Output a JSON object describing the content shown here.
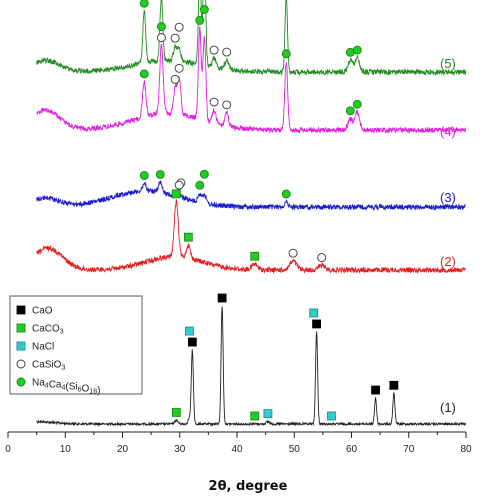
{
  "chart_data": {
    "type": "line",
    "xlabel": "2θ, degree",
    "ylabel": "",
    "xlim": [
      0,
      80
    ],
    "xticks": [
      0,
      10,
      20,
      30,
      40,
      50,
      60,
      70,
      80
    ],
    "y_axis_shown": false,
    "grid": false,
    "legend_placement": "lower-left",
    "marker_types": [
      {
        "key": "CaO",
        "label": "CaO",
        "shape": "square",
        "fill": "#000000",
        "stroke": "#000000"
      },
      {
        "key": "CaCO3",
        "label": "CaCO3",
        "shape": "square",
        "fill": "#22cc22",
        "stroke": "#118811"
      },
      {
        "key": "NaCl",
        "label": "NaCl",
        "shape": "square",
        "fill": "#33cccc",
        "stroke": "#118888"
      },
      {
        "key": "CaSiO3",
        "label": "CaSiO3",
        "shape": "circle",
        "fill": "#ffffff",
        "stroke": "#333333"
      },
      {
        "key": "NaCaSi",
        "label": "Na4Ca4(Si6O18)",
        "shape": "circle",
        "fill": "#22cc22",
        "stroke": "#118811"
      }
    ],
    "series": [
      {
        "name": "(1)",
        "color": "#222222",
        "peaks": [
          {
            "x": 32.2,
            "h": 0.62,
            "w": 0.18
          },
          {
            "x": 37.4,
            "h": 1.0,
            "w": 0.18
          },
          {
            "x": 53.9,
            "h": 0.78,
            "w": 0.18
          },
          {
            "x": 64.2,
            "h": 0.22,
            "w": 0.18
          },
          {
            "x": 67.4,
            "h": 0.26,
            "w": 0.18
          },
          {
            "x": 29.4,
            "h": 0.03,
            "w": 0.3
          },
          {
            "x": 31.7,
            "h": 0.05,
            "w": 0.25
          },
          {
            "x": 45.4,
            "h": 0.02,
            "w": 0.3
          }
        ],
        "humps": [
          {
            "x": 5,
            "h": 0.02,
            "w": 3
          }
        ],
        "markers": [
          {
            "type": "CaO",
            "x": 32.2
          },
          {
            "type": "CaO",
            "x": 37.4
          },
          {
            "type": "CaO",
            "x": 53.9
          },
          {
            "type": "CaO",
            "x": 64.2
          },
          {
            "type": "CaO",
            "x": 67.4
          },
          {
            "type": "CaCO3",
            "x": 29.4
          },
          {
            "type": "CaCO3",
            "x": 43.1
          },
          {
            "type": "NaCl",
            "x": 31.7
          },
          {
            "type": "NaCl",
            "x": 45.4
          },
          {
            "type": "NaCl",
            "x": 53.4
          },
          {
            "type": "NaCl",
            "x": 56.5
          }
        ]
      },
      {
        "name": "(2)",
        "color": "#e02020",
        "peaks": [
          {
            "x": 29.4,
            "h": 0.5,
            "w": 0.35
          },
          {
            "x": 31.5,
            "h": 0.12,
            "w": 0.35
          },
          {
            "x": 43.1,
            "h": 0.05,
            "w": 0.5
          },
          {
            "x": 49.8,
            "h": 0.08,
            "w": 0.6
          },
          {
            "x": 54.8,
            "h": 0.04,
            "w": 0.6
          }
        ],
        "humps": [
          {
            "x": 7,
            "h": 0.2,
            "w": 2.5
          },
          {
            "x": 29,
            "h": 0.12,
            "w": 5
          }
        ],
        "markers": [
          {
            "type": "CaCO3",
            "x": 29.4
          },
          {
            "type": "CaSiO3",
            "x": 30.2
          },
          {
            "type": "CaCO3",
            "x": 31.5
          },
          {
            "type": "CaCO3",
            "x": 43.1
          },
          {
            "type": "CaSiO3",
            "x": 49.8
          },
          {
            "type": "CaSiO3",
            "x": 54.8
          }
        ]
      },
      {
        "name": "(3)",
        "color": "#1a1acc",
        "peaks": [
          {
            "x": 23.8,
            "h": 0.15,
            "w": 0.3
          },
          {
            "x": 26.6,
            "h": 0.2,
            "w": 0.3
          },
          {
            "x": 29.9,
            "h": 0.08,
            "w": 0.3
          },
          {
            "x": 33.5,
            "h": 0.18,
            "w": 0.3
          },
          {
            "x": 34.3,
            "h": 0.18,
            "w": 0.3
          },
          {
            "x": 48.6,
            "h": 0.1,
            "w": 0.3
          }
        ],
        "humps": [
          {
            "x": 6.5,
            "h": 0.18,
            "w": 2.5
          },
          {
            "x": 24,
            "h": 0.32,
            "w": 6
          }
        ],
        "markers": [
          {
            "type": "NaCaSi",
            "x": 23.8
          },
          {
            "type": "NaCaSi",
            "x": 26.6
          },
          {
            "type": "CaSiO3",
            "x": 29.9
          },
          {
            "type": "NaCaSi",
            "x": 33.5
          },
          {
            "type": "NaCaSi",
            "x": 34.3
          },
          {
            "type": "NaCaSi",
            "x": 48.6
          }
        ]
      },
      {
        "name": "(4)",
        "color": "#e020e0",
        "peaks": [
          {
            "x": 23.8,
            "h": 0.32,
            "w": 0.3
          },
          {
            "x": 26.8,
            "h": 0.62,
            "w": 0.3
          },
          {
            "x": 29.2,
            "h": 0.22,
            "w": 0.3
          },
          {
            "x": 29.9,
            "h": 0.32,
            "w": 0.3
          },
          {
            "x": 33.5,
            "h": 0.82,
            "w": 0.25
          },
          {
            "x": 34.3,
            "h": 0.76,
            "w": 0.25
          },
          {
            "x": 36.0,
            "h": 0.12,
            "w": 0.3
          },
          {
            "x": 38.2,
            "h": 0.12,
            "w": 0.3
          },
          {
            "x": 48.6,
            "h": 0.62,
            "w": 0.25
          },
          {
            "x": 59.8,
            "h": 0.1,
            "w": 0.4
          },
          {
            "x": 61.0,
            "h": 0.16,
            "w": 0.4
          }
        ],
        "humps": [
          {
            "x": 6.5,
            "h": 0.18,
            "w": 2.5
          },
          {
            "x": 28,
            "h": 0.15,
            "w": 6
          }
        ],
        "markers": [
          {
            "type": "NaCaSi",
            "x": 23.8
          },
          {
            "type": "CaSiO3",
            "x": 26.8
          },
          {
            "type": "NaCaSi",
            "x": 26.8
          },
          {
            "type": "CaSiO3",
            "x": 29.2
          },
          {
            "type": "CaSiO3",
            "x": 29.9
          },
          {
            "type": "NaCaSi",
            "x": 33.5
          },
          {
            "type": "NaCaSi",
            "x": 34.3
          },
          {
            "type": "CaSiO3",
            "x": 36.0
          },
          {
            "type": "CaSiO3",
            "x": 38.2
          },
          {
            "type": "NaCaSi",
            "x": 48.6
          },
          {
            "type": "NaCaSi",
            "x": 59.8
          },
          {
            "type": "NaCaSi",
            "x": 61.0
          }
        ]
      },
      {
        "name": "(5)",
        "color": "#228b22",
        "peaks": [
          {
            "x": 23.8,
            "h": 0.45,
            "w": 0.25
          },
          {
            "x": 26.8,
            "h": 0.55,
            "w": 0.25
          },
          {
            "x": 29.2,
            "h": 0.12,
            "w": 0.3
          },
          {
            "x": 29.9,
            "h": 0.1,
            "w": 0.3
          },
          {
            "x": 33.5,
            "h": 0.88,
            "w": 0.22
          },
          {
            "x": 34.3,
            "h": 0.98,
            "w": 0.22
          },
          {
            "x": 36.0,
            "h": 0.08,
            "w": 0.3
          },
          {
            "x": 38.2,
            "h": 0.08,
            "w": 0.3
          },
          {
            "x": 48.6,
            "h": 0.65,
            "w": 0.22
          },
          {
            "x": 59.8,
            "h": 0.1,
            "w": 0.4
          },
          {
            "x": 61.0,
            "h": 0.12,
            "w": 0.4
          }
        ],
        "humps": [
          {
            "x": 6.5,
            "h": 0.1,
            "w": 2.5
          },
          {
            "x": 28,
            "h": 0.1,
            "w": 6
          }
        ],
        "markers": [
          {
            "type": "NaCaSi",
            "x": 23.8
          },
          {
            "type": "CaSiO3",
            "x": 26.8
          },
          {
            "type": "NaCaSi",
            "x": 26.8
          },
          {
            "type": "CaSiO3",
            "x": 29.2
          },
          {
            "type": "CaSiO3",
            "x": 29.9
          },
          {
            "type": "NaCaSi",
            "x": 33.5
          },
          {
            "type": "NaCaSi",
            "x": 34.3
          },
          {
            "type": "CaSiO3",
            "x": 36.0
          },
          {
            "type": "CaSiO3",
            "x": 38.2
          },
          {
            "type": "NaCaSi",
            "x": 48.6
          },
          {
            "type": "NaCaSi",
            "x": 59.8
          },
          {
            "type": "NaCaSi",
            "x": 61.0
          }
        ]
      }
    ]
  }
}
